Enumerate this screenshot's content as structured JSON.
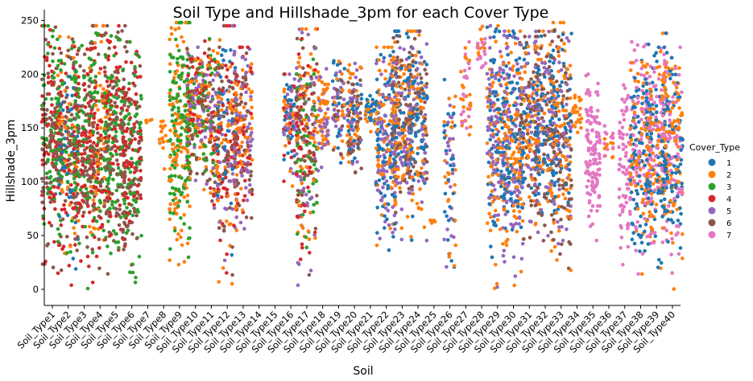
{
  "chart_data": {
    "type": "scatter",
    "subtype": "swarm",
    "title": "Soil Type and Hillshade_3pm for each Cover Type",
    "xlabel": "Soil",
    "ylabel": "Hillshade_3pm",
    "ylim": [
      -15,
      260
    ],
    "yticks": [
      0,
      50,
      100,
      150,
      200,
      250
    ],
    "grid": false,
    "legend": {
      "title": "Cover_Type",
      "placement": "right",
      "entries": [
        {
          "label": "1",
          "color": "#1f77b4"
        },
        {
          "label": "2",
          "color": "#ff7f0e"
        },
        {
          "label": "3",
          "color": "#2ca02c"
        },
        {
          "label": "4",
          "color": "#d62728"
        },
        {
          "label": "5",
          "color": "#9467bd"
        },
        {
          "label": "6",
          "color": "#8c564b"
        },
        {
          "label": "7",
          "color": "#e377c2"
        }
      ]
    },
    "categories": [
      "Soil_Type1",
      "Soil_Type2",
      "Soil_Type3",
      "Soil_Type4",
      "Soil_Type5",
      "Soil_Type6",
      "Soil_Type7",
      "Soil_Type8",
      "Soil_Type9",
      "Soil_Type10",
      "Soil_Type11",
      "Soil_Type12",
      "Soil_Type13",
      "Soil_Type14",
      "Soil_Type15",
      "Soil_Type16",
      "Soil_Type17",
      "Soil_Type18",
      "Soil_Type19",
      "Soil_Type20",
      "Soil_Type21",
      "Soil_Type22",
      "Soil_Type23",
      "Soil_Type24",
      "Soil_Type25",
      "Soil_Type26",
      "Soil_Type27",
      "Soil_Type28",
      "Soil_Type29",
      "Soil_Type30",
      "Soil_Type31",
      "Soil_Type32",
      "Soil_Type33",
      "Soil_Type34",
      "Soil_Type35",
      "Soil_Type36",
      "Soil_Type37",
      "Soil_Type38",
      "Soil_Type39",
      "Soil_Type40"
    ],
    "groups": [
      {
        "category": "Soil_Type1",
        "cover_types": [
          3,
          4,
          6
        ],
        "range": [
          0,
          245
        ],
        "density": 1.0
      },
      {
        "category": "Soil_Type2",
        "cover_types": [
          1,
          2,
          3,
          4,
          6
        ],
        "range": [
          0,
          235
        ],
        "density": 1.0
      },
      {
        "category": "Soil_Type3",
        "cover_types": [
          3,
          4,
          6
        ],
        "range": [
          0,
          230
        ],
        "density": 1.0
      },
      {
        "category": "Soil_Type4",
        "cover_types": [
          2,
          3,
          4,
          6
        ],
        "range": [
          0,
          245
        ],
        "density": 1.0
      },
      {
        "category": "Soil_Type5",
        "cover_types": [
          3,
          4,
          6
        ],
        "range": [
          0,
          245
        ],
        "density": 0.9
      },
      {
        "category": "Soil_Type6",
        "cover_types": [
          3,
          4,
          6
        ],
        "range": [
          0,
          230
        ],
        "density": 0.9
      },
      {
        "category": "Soil_Type7",
        "cover_types": [
          2
        ],
        "range": [
          155,
          158
        ],
        "density": 0.02
      },
      {
        "category": "Soil_Type8",
        "cover_types": [
          2
        ],
        "range": [
          103,
          165
        ],
        "density": 0.06
      },
      {
        "category": "Soil_Type9",
        "cover_types": [
          2,
          3
        ],
        "range": [
          0,
          248
        ],
        "density": 1.0
      },
      {
        "category": "Soil_Type10",
        "cover_types": [
          2,
          3,
          4,
          5,
          6
        ],
        "range": [
          95,
          225
        ],
        "density": 0.7
      },
      {
        "category": "Soil_Type11",
        "cover_types": [
          2,
          3,
          4,
          5,
          6
        ],
        "range": [
          50,
          240
        ],
        "density": 0.7
      },
      {
        "category": "Soil_Type12",
        "cover_types": [
          1,
          2,
          4,
          5,
          6
        ],
        "range": [
          0,
          245
        ],
        "density": 0.9
      },
      {
        "category": "Soil_Type13",
        "cover_types": [
          2,
          4,
          5,
          6
        ],
        "range": [
          40,
          225
        ],
        "density": 0.8
      },
      {
        "category": "Soil_Type14",
        "cover_types": [],
        "range": [
          0,
          0
        ],
        "density": 0
      },
      {
        "category": "Soil_Type15",
        "cover_types": [],
        "range": [
          0,
          0
        ],
        "density": 0
      },
      {
        "category": "Soil_Type16",
        "cover_types": [
          1,
          2,
          4,
          5
        ],
        "range": [
          95,
          200
        ],
        "density": 0.5
      },
      {
        "category": "Soil_Type17",
        "cover_types": [
          2,
          3,
          4,
          5,
          6
        ],
        "range": [
          0,
          242
        ],
        "density": 1.0
      },
      {
        "category": "Soil_Type18",
        "cover_types": [
          2,
          5
        ],
        "range": [
          105,
          205
        ],
        "density": 0.3
      },
      {
        "category": "Soil_Type19",
        "cover_types": [
          1,
          2,
          5,
          6
        ],
        "range": [
          110,
          215
        ],
        "density": 0.3
      },
      {
        "category": "Soil_Type20",
        "cover_types": [
          1,
          2,
          5,
          6
        ],
        "range": [
          90,
          210
        ],
        "density": 0.5
      },
      {
        "category": "Soil_Type21",
        "cover_types": [
          1,
          2
        ],
        "range": [
          145,
          180
        ],
        "density": 0.15
      },
      {
        "category": "Soil_Type22",
        "cover_types": [
          1,
          2,
          5
        ],
        "range": [
          30,
          225
        ],
        "density": 1.0
      },
      {
        "category": "Soil_Type23",
        "cover_types": [
          1,
          2,
          5,
          6
        ],
        "range": [
          40,
          240
        ],
        "density": 1.0
      },
      {
        "category": "Soil_Type24",
        "cover_types": [
          1,
          2,
          5,
          6
        ],
        "range": [
          45,
          240
        ],
        "density": 0.8
      },
      {
        "category": "Soil_Type25",
        "cover_types": [
          2
        ],
        "range": [
          60,
          65
        ],
        "density": 0.02
      },
      {
        "category": "Soil_Type26",
        "cover_types": [
          1,
          2,
          5
        ],
        "range": [
          0,
          195
        ],
        "density": 0.3
      },
      {
        "category": "Soil_Type27",
        "cover_types": [
          2,
          7
        ],
        "range": [
          115,
          230
        ],
        "density": 0.15
      },
      {
        "category": "Soil_Type28",
        "cover_types": [
          2,
          7
        ],
        "range": [
          195,
          248
        ],
        "density": 0.1
      },
      {
        "category": "Soil_Type29",
        "cover_types": [
          1,
          2,
          5
        ],
        "range": [
          0,
          245
        ],
        "density": 1.0
      },
      {
        "category": "Soil_Type30",
        "cover_types": [
          1,
          2,
          5
        ],
        "range": [
          0,
          240
        ],
        "density": 1.0
      },
      {
        "category": "Soil_Type31",
        "cover_types": [
          1,
          2,
          5,
          6
        ],
        "range": [
          40,
          235
        ],
        "density": 0.9
      },
      {
        "category": "Soil_Type32",
        "cover_types": [
          1,
          2,
          5,
          6
        ],
        "range": [
          40,
          240
        ],
        "density": 0.9
      },
      {
        "category": "Soil_Type33",
        "cover_types": [
          1,
          2,
          5,
          6
        ],
        "range": [
          0,
          248
        ],
        "density": 1.0
      },
      {
        "category": "Soil_Type34",
        "cover_types": [
          2
        ],
        "range": [
          140,
          185
        ],
        "density": 0.1
      },
      {
        "category": "Soil_Type35",
        "cover_types": [
          7
        ],
        "range": [
          30,
          200
        ],
        "density": 0.5
      },
      {
        "category": "Soil_Type36",
        "cover_types": [
          2,
          7
        ],
        "range": [
          115,
          155
        ],
        "density": 0.08
      },
      {
        "category": "Soil_Type37",
        "cover_types": [
          7
        ],
        "range": [
          0,
          190
        ],
        "density": 0.3
      },
      {
        "category": "Soil_Type38",
        "cover_types": [
          1,
          2,
          7
        ],
        "range": [
          0,
          230
        ],
        "density": 1.0
      },
      {
        "category": "Soil_Type39",
        "cover_types": [
          1,
          2,
          7
        ],
        "range": [
          0,
          238
        ],
        "density": 1.0
      },
      {
        "category": "Soil_Type40",
        "cover_types": [
          1,
          2,
          7
        ],
        "range": [
          0,
          225
        ],
        "density": 1.0
      }
    ]
  }
}
